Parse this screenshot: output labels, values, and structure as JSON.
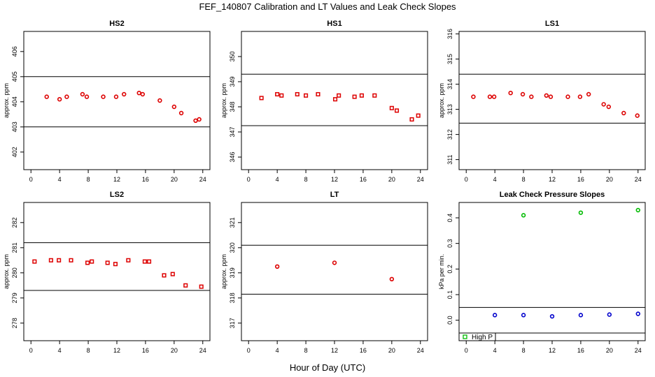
{
  "title": "FEF_140807  Calibration and LT Values and Leak Check Slopes",
  "xlabel": "Hour of Day (UTC)",
  "colors": {
    "cal": "#dd0000",
    "leak_high": "#00bb00",
    "leak_low": "#0000cc",
    "line": "#000000"
  },
  "chart_data": [
    {
      "type": "scatter",
      "title": "HS2",
      "ylabel": "approx. ppm",
      "xlim": [
        -1,
        25
      ],
      "ylim": [
        401.3,
        406.8
      ],
      "xticks": [
        0,
        4,
        8,
        12,
        16,
        20,
        24
      ],
      "yticks": [
        402,
        403,
        404,
        405,
        406
      ],
      "hlines": [
        403.0,
        405.0
      ],
      "series": [
        {
          "name": "cal",
          "color": "#dd0000",
          "marker": "circle",
          "x": [
            2.2,
            4.0,
            5.0,
            7.2,
            7.8,
            10.1,
            11.9,
            13.0,
            15.1,
            15.6,
            18.0,
            20.0,
            21.0,
            23.0,
            23.5
          ],
          "y": [
            404.2,
            404.1,
            404.2,
            404.3,
            404.2,
            404.2,
            404.2,
            404.3,
            404.35,
            404.3,
            404.05,
            403.8,
            403.55,
            403.25,
            403.3
          ]
        }
      ]
    },
    {
      "type": "scatter",
      "title": "HS1",
      "ylabel": "approx. ppm",
      "xlim": [
        -1,
        25
      ],
      "ylim": [
        345.5,
        351.0
      ],
      "xticks": [
        0,
        4,
        8,
        12,
        16,
        20,
        24
      ],
      "yticks": [
        346,
        347,
        348,
        349,
        350
      ],
      "hlines": [
        347.25,
        349.3
      ],
      "series": [
        {
          "name": "cal",
          "color": "#dd0000",
          "marker": "square",
          "x": [
            1.8,
            4.0,
            4.6,
            6.8,
            8.0,
            9.7,
            12.1,
            12.6,
            14.8,
            15.8,
            17.6,
            20.0,
            20.7,
            22.8,
            23.7
          ],
          "y": [
            348.35,
            348.5,
            348.45,
            348.5,
            348.45,
            348.5,
            348.3,
            348.45,
            348.4,
            348.45,
            348.45,
            347.95,
            347.85,
            347.5,
            347.65
          ]
        }
      ]
    },
    {
      "type": "scatter",
      "title": "LS1",
      "ylabel": "approx. ppm",
      "xlim": [
        -1,
        25
      ],
      "ylim": [
        310.6,
        316.1
      ],
      "xticks": [
        0,
        4,
        8,
        12,
        16,
        20,
        24
      ],
      "yticks": [
        311,
        312,
        313,
        314,
        315,
        316
      ],
      "hlines": [
        312.45,
        314.4
      ],
      "series": [
        {
          "name": "cal",
          "color": "#dd0000",
          "marker": "circle",
          "x": [
            1.0,
            3.3,
            3.9,
            6.2,
            7.9,
            9.1,
            11.2,
            11.8,
            14.2,
            15.9,
            17.1,
            19.2,
            19.9,
            22.0,
            23.9
          ],
          "y": [
            313.5,
            313.5,
            313.5,
            313.65,
            313.6,
            313.5,
            313.55,
            313.5,
            313.5,
            313.5,
            313.6,
            313.2,
            313.1,
            312.85,
            312.75
          ]
        }
      ]
    },
    {
      "type": "scatter",
      "title": "LS2",
      "ylabel": "approx. ppm",
      "xlim": [
        -1,
        25
      ],
      "ylim": [
        277.3,
        282.8
      ],
      "xticks": [
        0,
        4,
        8,
        12,
        16,
        20,
        24
      ],
      "yticks": [
        278,
        279,
        280,
        281,
        282
      ],
      "hlines": [
        279.3,
        281.2
      ],
      "series": [
        {
          "name": "cal",
          "color": "#dd0000",
          "marker": "square",
          "x": [
            0.5,
            2.8,
            3.9,
            5.6,
            7.9,
            8.5,
            10.7,
            11.8,
            13.6,
            15.9,
            16.5,
            18.6,
            19.8,
            21.6,
            23.8
          ],
          "y": [
            280.45,
            280.5,
            280.5,
            280.5,
            280.4,
            280.45,
            280.4,
            280.35,
            280.5,
            280.45,
            280.45,
            279.9,
            279.95,
            279.5,
            279.45
          ]
        }
      ]
    },
    {
      "type": "scatter",
      "title": "LT",
      "ylabel": "approx. ppm",
      "xlim": [
        -1,
        25
      ],
      "ylim": [
        316.3,
        321.8
      ],
      "xticks": [
        0,
        4,
        8,
        12,
        16,
        20,
        24
      ],
      "yticks": [
        317,
        318,
        319,
        320,
        321
      ],
      "hlines": [
        318.15,
        320.1
      ],
      "series": [
        {
          "name": "LT",
          "color": "#dd0000",
          "marker": "circle",
          "x": [
            4.0,
            12.0,
            20.0
          ],
          "y": [
            319.25,
            319.4,
            318.75
          ]
        }
      ]
    },
    {
      "type": "scatter",
      "title": "Leak Check Pressure Slopes",
      "ylabel": "kPa per min.",
      "xlim": [
        -1,
        25
      ],
      "ylim": [
        -0.08,
        0.46
      ],
      "xticks": [
        0,
        4,
        8,
        12,
        16,
        20,
        24
      ],
      "yticks": [
        0.0,
        0.1,
        0.2,
        0.3,
        0.4
      ],
      "ytick_labels": [
        "0.0",
        "0.1",
        "0.2",
        "0.3",
        "0.4"
      ],
      "hlines": [
        0.05,
        -0.05
      ],
      "legend": [
        "High P"
      ],
      "legend_position": "bottom-left",
      "series": [
        {
          "name": "High P",
          "color": "#00bb00",
          "marker": "circle",
          "x": [
            8.0,
            16.0,
            24.0
          ],
          "y": [
            0.41,
            0.42,
            0.43
          ]
        },
        {
          "name": "Low P",
          "color": "#0000cc",
          "marker": "circle",
          "x": [
            4.0,
            8.0,
            12.0,
            16.0,
            20.0,
            24.0
          ],
          "y": [
            0.02,
            0.02,
            0.015,
            0.02,
            0.022,
            0.025
          ]
        }
      ]
    }
  ]
}
